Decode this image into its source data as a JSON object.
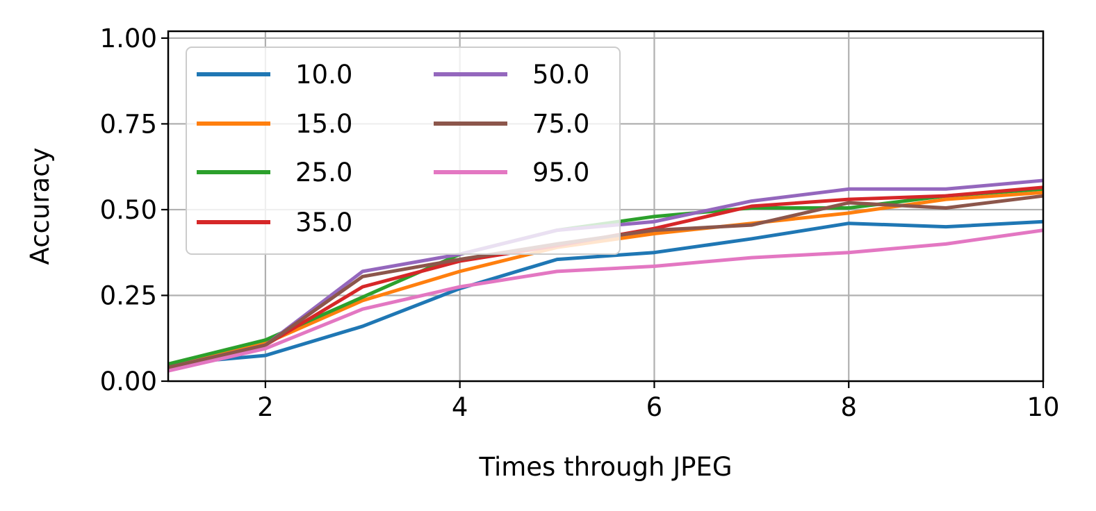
{
  "chart_data": {
    "type": "line",
    "title": "",
    "xlabel": "Times through JPEG",
    "ylabel": "Accuracy",
    "xlim": [
      1,
      10
    ],
    "ylim": [
      0,
      1.02
    ],
    "x": [
      1,
      2,
      3,
      4,
      5,
      6,
      7,
      8,
      9,
      10
    ],
    "xticks": [
      2,
      4,
      6,
      8,
      10
    ],
    "xtick_labels": [
      "2",
      "4",
      "6",
      "8",
      "10"
    ],
    "yticks": [
      0,
      0.25,
      0.5,
      0.75,
      1.0
    ],
    "ytick_labels": [
      "0.00",
      "0.25",
      "0.50",
      "0.75",
      "1.00"
    ],
    "grid": true,
    "legend": {
      "placement": "top-left",
      "columns": 2
    },
    "series": [
      {
        "name": "10.0",
        "color": "#1f77b4",
        "values": [
          0.05,
          0.075,
          0.16,
          0.27,
          0.355,
          0.375,
          0.415,
          0.46,
          0.45,
          0.465
        ]
      },
      {
        "name": "15.0",
        "color": "#ff7f0e",
        "values": [
          0.04,
          0.11,
          0.235,
          0.32,
          0.39,
          0.43,
          0.46,
          0.49,
          0.53,
          0.55
        ]
      },
      {
        "name": "25.0",
        "color": "#2ca02c",
        "values": [
          0.05,
          0.12,
          0.245,
          0.37,
          0.44,
          0.48,
          0.505,
          0.505,
          0.54,
          0.56
        ]
      },
      {
        "name": "35.0",
        "color": "#d62728",
        "values": [
          0.04,
          0.105,
          0.275,
          0.35,
          0.395,
          0.445,
          0.51,
          0.53,
          0.54,
          0.565
        ]
      },
      {
        "name": "50.0",
        "color": "#9467bd",
        "values": [
          0.04,
          0.105,
          0.32,
          0.37,
          0.44,
          0.465,
          0.525,
          0.56,
          0.56,
          0.585
        ]
      },
      {
        "name": "75.0",
        "color": "#8c564b",
        "values": [
          0.04,
          0.105,
          0.305,
          0.355,
          0.4,
          0.44,
          0.455,
          0.52,
          0.505,
          0.54
        ]
      },
      {
        "name": "95.0",
        "color": "#e377c2",
        "values": [
          0.03,
          0.095,
          0.21,
          0.275,
          0.32,
          0.335,
          0.36,
          0.375,
          0.4,
          0.44
        ]
      }
    ]
  }
}
